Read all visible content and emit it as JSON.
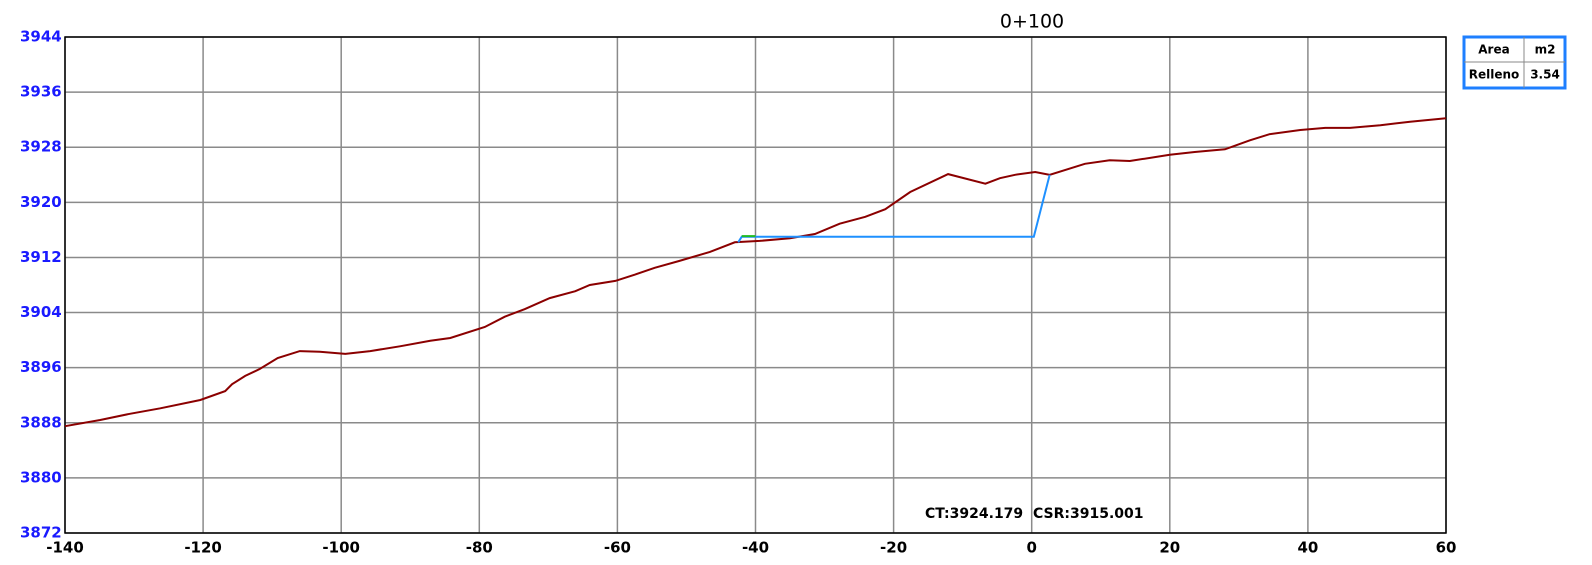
{
  "chart_data": {
    "type": "line",
    "title": "0+100",
    "xlim": [
      -140,
      60
    ],
    "xticks": [
      -140,
      -120,
      -100,
      -80,
      -60,
      -40,
      -20,
      0,
      20,
      40,
      60
    ],
    "ylim": [
      3872,
      3944
    ],
    "yticks": [
      3872,
      3880,
      3888,
      3896,
      3904,
      3912,
      3920,
      3928,
      3936,
      3944
    ],
    "grid": true,
    "series": [
      {
        "color": "#8b0000",
        "x": [
          -140,
          -134.9,
          -130.6,
          -126.2,
          -120.4,
          -116.8,
          -115.8,
          -113.9,
          -111.8,
          -109.2,
          -106,
          -103.1,
          -99.4,
          -95.8,
          -91.5,
          -87.1,
          -84.2,
          -79.2,
          -76.3,
          -73.4,
          -69.8,
          -66.1,
          -64,
          -60.3,
          -57.5,
          -54.6,
          -51,
          -46.6,
          -43,
          -39.4,
          -35,
          -31.4,
          -27.8,
          -24.1,
          -21.2,
          -17.6,
          -12.1,
          -6.7,
          -4.6,
          -2.4,
          0.5,
          2.6,
          7.7,
          11.3,
          14.2,
          20,
          23.6,
          28,
          31.6,
          34.5,
          38.9,
          42.5,
          46.1,
          50.5,
          54.8,
          60
        ],
        "values": [
          3887.5,
          3888.4,
          3889.3,
          3890.1,
          3891.3,
          3892.6,
          3893.6,
          3894.8,
          3895.8,
          3897.4,
          3898.4,
          3898.3,
          3898.0,
          3898.4,
          3899.1,
          3899.9,
          3900.3,
          3901.9,
          3903.4,
          3904.5,
          3906.1,
          3907.1,
          3908,
          3908.6,
          3909.5,
          3910.5,
          3911.5,
          3912.8,
          3914.2,
          3914.4,
          3914.8,
          3915.4,
          3916.9,
          3917.9,
          3919,
          3921.5,
          3924.1,
          3922.7,
          3923.5,
          3924,
          3924.4,
          3924,
          3925.6,
          3926.1,
          3926,
          3926.9,
          3927.3,
          3927.7,
          3929,
          3929.9,
          3930.5,
          3930.8,
          3930.8,
          3931.2,
          3931.7,
          3932.2
        ]
      },
      {
        "color": "#1e90ff",
        "x": [
          -42.5,
          -42,
          0.3,
          2.6
        ],
        "values": [
          3914.2,
          3915,
          3915,
          3924
        ]
      },
      {
        "color": "#22bb22",
        "x": [
          -42,
          -40
        ],
        "values": [
          3915.1,
          3915.1
        ]
      }
    ],
    "annotations": [
      "CT:3924.179",
      "CSR:3915.001"
    ],
    "table": {
      "header": [
        "Area",
        "m2"
      ],
      "rows": [
        [
          "Relleno",
          3.54
        ]
      ]
    }
  }
}
